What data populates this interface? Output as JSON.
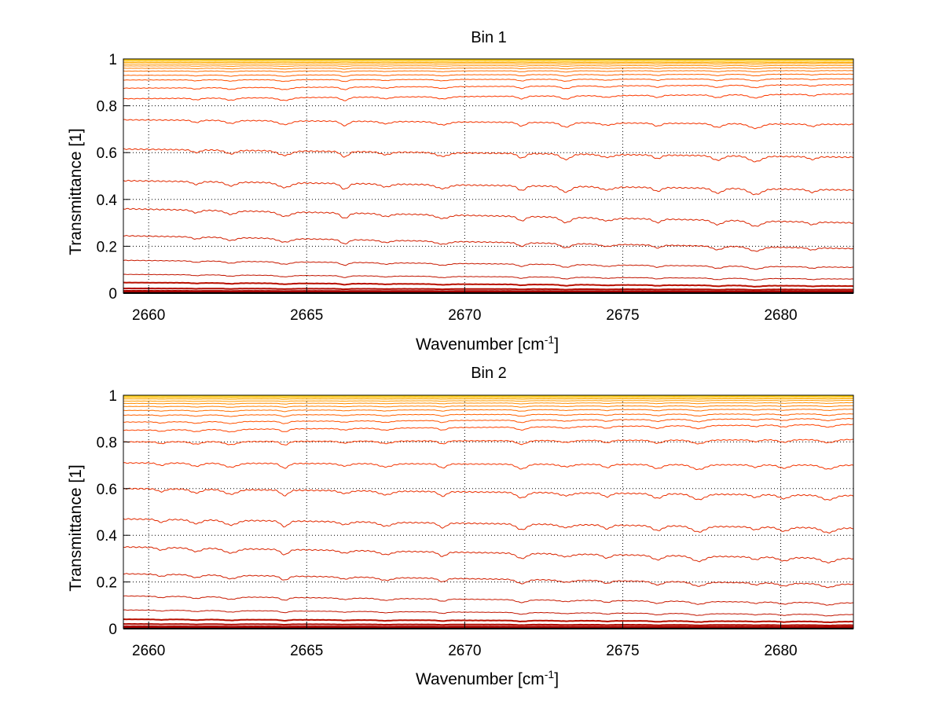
{
  "chart_data": [
    {
      "type": "line",
      "title": "Bin 1",
      "xlabel_text": "Wavenumber [cm",
      "xlabel_sup": "-1",
      "xlabel_close": "]",
      "ylabel": "Transmittance [1]",
      "xlim": [
        2659.2,
        2682.3
      ],
      "ylim": [
        0,
        1
      ],
      "xticks": [
        2660,
        2665,
        2670,
        2675,
        2680
      ],
      "yticks": [
        0,
        0.2,
        0.4,
        0.6,
        0.8,
        1
      ],
      "grid": true,
      "absorption_lines": [
        2661.5,
        2662.6,
        2664.3,
        2666.2,
        2667.5,
        2669.3,
        2671.8,
        2673.2,
        2674.5,
        2676.1,
        2678.0,
        2679.2,
        2681.0
      ],
      "series_levels": [
        {
          "start": 1.0,
          "end": 1.0
        },
        {
          "start": 0.998,
          "end": 0.998
        },
        {
          "start": 0.995,
          "end": 0.995
        },
        {
          "start": 0.99,
          "end": 0.99
        },
        {
          "start": 0.985,
          "end": 0.985
        },
        {
          "start": 0.978,
          "end": 0.98
        },
        {
          "start": 0.97,
          "end": 0.972
        },
        {
          "start": 0.96,
          "end": 0.962
        },
        {
          "start": 0.948,
          "end": 0.95
        },
        {
          "start": 0.93,
          "end": 0.935
        },
        {
          "start": 0.91,
          "end": 0.915
        },
        {
          "start": 0.875,
          "end": 0.89
        },
        {
          "start": 0.83,
          "end": 0.85
        },
        {
          "start": 0.74,
          "end": 0.72
        },
        {
          "start": 0.615,
          "end": 0.58
        },
        {
          "start": 0.48,
          "end": 0.44
        },
        {
          "start": 0.36,
          "end": 0.3
        },
        {
          "start": 0.245,
          "end": 0.19
        },
        {
          "start": 0.14,
          "end": 0.11
        },
        {
          "start": 0.08,
          "end": 0.06
        },
        {
          "start": 0.045,
          "end": 0.03
        },
        {
          "start": 0.02,
          "end": 0.015
        },
        {
          "start": 0.01,
          "end": 0.008
        },
        {
          "start": 0.004,
          "end": 0.003
        }
      ]
    },
    {
      "type": "line",
      "title": "Bin 2",
      "xlabel_text": "Wavenumber [cm",
      "xlabel_sup": "-1",
      "xlabel_close": "]",
      "ylabel": "Transmittance [1]",
      "xlim": [
        2659.2,
        2682.3
      ],
      "ylim": [
        0,
        1
      ],
      "xticks": [
        2660,
        2665,
        2670,
        2675,
        2680
      ],
      "yticks": [
        0,
        0.2,
        0.4,
        0.6,
        0.8,
        1
      ],
      "grid": true,
      "absorption_lines": [
        2660.4,
        2661.5,
        2662.6,
        2664.3,
        2666.2,
        2667.5,
        2669.3,
        2671.8,
        2673.2,
        2674.5,
        2676.1,
        2677.4,
        2679.2,
        2680.1,
        2681.5
      ],
      "series_levels": [
        {
          "start": 1.0,
          "end": 1.0
        },
        {
          "start": 0.998,
          "end": 0.998
        },
        {
          "start": 0.994,
          "end": 0.995
        },
        {
          "start": 0.99,
          "end": 0.99
        },
        {
          "start": 0.984,
          "end": 0.985
        },
        {
          "start": 0.975,
          "end": 0.978
        },
        {
          "start": 0.965,
          "end": 0.968
        },
        {
          "start": 0.952,
          "end": 0.955
        },
        {
          "start": 0.935,
          "end": 0.94
        },
        {
          "start": 0.915,
          "end": 0.92
        },
        {
          "start": 0.885,
          "end": 0.9
        },
        {
          "start": 0.85,
          "end": 0.875
        },
        {
          "start": 0.8,
          "end": 0.81
        },
        {
          "start": 0.71,
          "end": 0.7
        },
        {
          "start": 0.6,
          "end": 0.57
        },
        {
          "start": 0.47,
          "end": 0.43
        },
        {
          "start": 0.35,
          "end": 0.3
        },
        {
          "start": 0.235,
          "end": 0.19
        },
        {
          "start": 0.14,
          "end": 0.11
        },
        {
          "start": 0.08,
          "end": 0.06
        },
        {
          "start": 0.04,
          "end": 0.03
        },
        {
          "start": 0.02,
          "end": 0.015
        },
        {
          "start": 0.01,
          "end": 0.008
        },
        {
          "start": 0.004,
          "end": 0.003
        }
      ]
    }
  ]
}
